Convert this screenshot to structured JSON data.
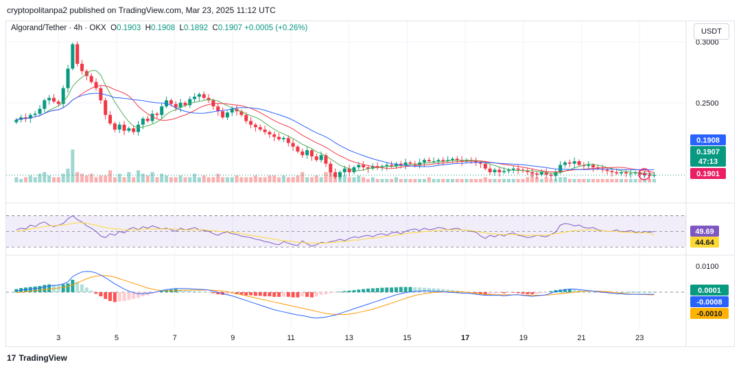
{
  "header": {
    "publisher": "cryptopolitanpa2 published on TradingView.com, Mar 23, 2025 11:12 UTC"
  },
  "legend": {
    "symbol": "Algorand/Tether · 4h · OKX",
    "open_label": "O",
    "open": "0.1903",
    "high_label": "H",
    "high": "0.1908",
    "low_label": "L",
    "low": "0.1892",
    "close_label": "C",
    "close": "0.1907",
    "change": "+0.0005 (+0.26%)"
  },
  "currency": "USDT",
  "footer": {
    "brand": "TradingView",
    "logo": "17"
  },
  "colors": {
    "up": "#089981",
    "down": "#f23645",
    "ma_green": "#4caf50",
    "ma_red": "#f23645",
    "ma_blue": "#2962ff",
    "rsi": "#7e57c2",
    "rsi_ma": "#fdd835",
    "macd": "#2962ff",
    "signal": "#ff9800"
  },
  "chart_data": [
    {
      "type": "candlestick",
      "pane": "price",
      "xlabel": "",
      "ylabel": "",
      "x_ticks": [
        "3",
        "5",
        "7",
        "9",
        "11",
        "13",
        "15",
        "17",
        "19",
        "21",
        "23"
      ],
      "x_tick_days": [
        3,
        5,
        7,
        9,
        11,
        13,
        15,
        17,
        19,
        21,
        23
      ],
      "bold_tick": "17",
      "x_range_days": [
        1.2,
        24.6
      ],
      "y_ticks": [
        "0.3000",
        "0.2500"
      ],
      "y_tick_values": [
        0.3,
        0.25
      ],
      "ylim": [
        0.1835,
        0.309
      ],
      "price_labels": [
        {
          "text": "0.1908",
          "value": 0.1908,
          "color": "#2962ff"
        },
        {
          "text": "0.1907",
          "value": 0.1907,
          "color": "#089981"
        },
        {
          "text": "47:13",
          "value": 0.1907,
          "color": "#089981",
          "note": "countdown"
        },
        {
          "text": "0.1901",
          "value": 0.1901,
          "color": "#e91e63"
        }
      ],
      "close_approx": [
        0.236,
        0.238,
        0.237,
        0.24,
        0.241,
        0.245,
        0.252,
        0.254,
        0.251,
        0.249,
        0.262,
        0.278,
        0.298,
        0.282,
        0.276,
        0.272,
        0.267,
        0.262,
        0.252,
        0.24,
        0.233,
        0.228,
        0.232,
        0.227,
        0.229,
        0.226,
        0.232,
        0.237,
        0.235,
        0.241,
        0.24,
        0.247,
        0.252,
        0.249,
        0.246,
        0.25,
        0.248,
        0.253,
        0.255,
        0.257,
        0.254,
        0.252,
        0.247,
        0.243,
        0.238,
        0.242,
        0.245,
        0.243,
        0.24,
        0.235,
        0.232,
        0.23,
        0.228,
        0.226,
        0.224,
        0.222,
        0.22,
        0.221,
        0.217,
        0.214,
        0.21,
        0.207,
        0.211,
        0.206,
        0.203,
        0.207,
        0.2,
        0.193,
        0.189,
        0.193,
        0.196,
        0.193,
        0.197,
        0.199,
        0.197,
        0.196,
        0.198,
        0.197,
        0.198,
        0.199,
        0.198,
        0.2,
        0.199,
        0.201,
        0.2,
        0.199,
        0.201,
        0.203,
        0.202,
        0.202,
        0.203,
        0.202,
        0.203,
        0.204,
        0.203,
        0.202,
        0.203,
        0.202,
        0.201,
        0.2,
        0.196,
        0.193,
        0.195,
        0.193,
        0.194,
        0.195,
        0.196,
        0.195,
        0.194,
        0.193,
        0.192,
        0.191,
        0.193,
        0.191,
        0.19,
        0.193,
        0.199,
        0.201,
        0.2,
        0.202,
        0.199,
        0.198,
        0.199,
        0.197,
        0.196,
        0.195,
        0.194,
        0.193,
        0.192,
        0.193,
        0.192,
        0.192,
        0.193,
        0.191,
        0.191,
        0.19,
        0.1907
      ],
      "volume_approx": [
        0.3,
        0.2,
        0.3,
        0.4,
        0.3,
        0.5,
        0.6,
        0.4,
        0.3,
        0.3,
        0.5,
        0.8,
        1.9,
        0.6,
        0.5,
        0.4,
        0.5,
        0.3,
        0.4,
        0.4,
        0.7,
        0.3,
        0.5,
        0.3,
        0.6,
        0.3,
        0.7,
        0.5,
        0.4,
        0.6,
        0.3,
        0.5,
        0.4,
        0.3,
        0.3,
        0.4,
        0.3,
        0.3,
        0.5,
        0.3,
        0.4,
        0.3,
        0.3,
        0.5,
        0.3,
        0.3,
        0.3,
        0.4,
        0.3,
        0.3,
        0.3,
        0.4,
        0.3,
        0.3,
        0.4,
        0.4,
        0.3,
        0.4,
        0.3,
        0.3,
        0.4,
        0.6,
        0.3,
        0.3,
        0.4,
        0.3,
        0.6,
        0.7,
        0.5,
        0.3,
        0.4,
        0.3,
        0.3,
        0.4,
        0.3,
        0.2,
        0.3,
        0.2,
        0.2,
        0.2,
        0.2,
        0.3,
        0.2,
        0.2,
        0.2,
        0.2,
        0.2,
        0.2,
        0.3,
        0.2,
        0.2,
        0.2,
        0.2,
        0.2,
        0.2,
        0.2,
        0.2,
        0.2,
        0.2,
        0.2,
        0.3,
        0.2,
        0.2,
        0.2,
        0.2,
        0.2,
        0.2,
        0.2,
        0.2,
        0.3,
        0.6,
        0.3,
        0.2,
        0.3,
        0.2,
        0.2,
        0.3,
        0.3,
        0.2,
        0.2,
        0.2,
        0.2,
        0.2,
        0.2,
        0.2,
        0.2,
        0.2,
        0.2,
        0.2,
        0.2,
        0.2,
        0.2,
        0.2,
        0.2,
        0.2,
        0.2,
        0.2
      ]
    },
    {
      "type": "line",
      "pane": "rsi",
      "ylim": [
        25,
        80
      ],
      "bands": [
        70,
        50,
        30
      ],
      "series": [
        {
          "key": "rsi",
          "value_label": "49.69",
          "last": 49.69,
          "values": [
            52,
            54,
            53,
            58,
            56,
            60,
            62,
            58,
            56,
            58,
            60,
            66,
            70,
            65,
            62,
            57,
            54,
            50,
            44,
            42,
            47,
            45,
            50,
            48,
            53,
            55,
            52,
            56,
            54,
            57,
            55,
            53,
            54,
            52,
            50,
            54,
            52,
            53,
            55,
            52,
            51,
            50,
            47,
            45,
            48,
            49,
            47,
            46,
            44,
            43,
            42,
            40,
            39,
            37,
            36,
            34,
            33,
            37,
            35,
            33,
            32,
            38,
            34,
            31,
            33,
            36,
            35,
            37,
            38,
            40,
            38,
            41,
            43,
            42,
            44,
            45,
            43,
            46,
            47,
            45,
            48,
            49,
            47,
            50,
            52,
            53,
            51,
            54,
            52,
            53,
            55,
            54,
            52,
            53,
            54,
            52,
            51,
            50,
            49,
            44,
            41,
            45,
            43,
            46,
            44,
            47,
            48,
            45,
            44,
            42,
            43,
            45,
            44,
            43,
            46,
            49,
            58,
            60,
            59,
            57,
            58,
            55,
            54,
            55,
            52,
            51,
            50,
            50,
            52,
            49,
            50,
            51,
            49,
            48,
            50,
            49,
            49.69
          ]
        },
        {
          "key": "rsi_ma",
          "value_label": "44.64",
          "last": 44.64,
          "values": [
            50,
            51,
            52,
            53,
            54,
            55,
            56,
            57,
            57,
            58,
            58,
            59,
            60,
            61,
            61,
            60,
            59,
            58,
            56,
            55,
            54,
            53,
            53,
            52,
            52,
            52,
            52,
            53,
            53,
            53,
            53,
            53,
            53,
            53,
            53,
            52,
            52,
            52,
            52,
            52,
            52,
            51,
            51,
            50,
            50,
            49,
            49,
            48,
            47,
            46,
            45,
            44,
            43,
            42,
            41,
            40,
            39,
            38,
            38,
            37,
            36,
            36,
            35,
            35,
            35,
            35,
            35,
            36,
            36,
            37,
            37,
            38,
            39,
            39,
            40,
            41,
            41,
            42,
            43,
            44,
            44,
            45,
            46,
            47,
            48,
            48,
            49,
            50,
            50,
            51,
            51,
            52,
            52,
            52,
            52,
            52,
            51,
            51,
            50,
            49,
            48,
            47,
            47,
            46,
            46,
            46,
            46,
            46,
            45,
            45,
            45,
            45,
            45,
            45,
            46,
            47,
            48,
            49,
            50,
            51,
            51,
            52,
            52,
            52,
            51,
            51,
            50,
            50,
            50,
            49,
            49,
            49,
            48,
            48,
            48,
            48,
            44.64
          ]
        }
      ]
    },
    {
      "type": "bar",
      "pane": "macd",
      "y_ticks": [
        "0.0100"
      ],
      "y_tick_values": [
        0.01
      ],
      "ylim": [
        -0.0132,
        0.0135
      ],
      "series": [
        {
          "key": "histogram",
          "value_label": "0.0001",
          "last": 0.0001
        },
        {
          "key": "macd",
          "value_label": "-0.0008",
          "last": -0.0008
        },
        {
          "key": "signal",
          "value_label": "-0.0010",
          "last": -0.001
        }
      ],
      "histogram_values": [
        0.0012,
        0.0016,
        0.0018,
        0.002,
        0.0022,
        0.0024,
        0.0028,
        0.003,
        0.0029,
        0.0028,
        0.003,
        0.0034,
        0.0048,
        0.004,
        0.003,
        0.0018,
        0.0006,
        -0.0006,
        -0.0016,
        -0.0026,
        -0.0034,
        -0.0038,
        -0.0036,
        -0.0034,
        -0.003,
        -0.0026,
        -0.0022,
        -0.0016,
        -0.0012,
        -0.0006,
        -0.0002,
        0.0004,
        0.0008,
        0.001,
        0.0012,
        0.001,
        0.0008,
        0.0006,
        0.0005,
        0.0004,
        0.0002,
        0.0,
        -0.0004,
        -0.0008,
        -0.001,
        -0.0008,
        -0.0006,
        -0.0008,
        -0.001,
        -0.0012,
        -0.0012,
        -0.0014,
        -0.0014,
        -0.0016,
        -0.0016,
        -0.0018,
        -0.0018,
        -0.0016,
        -0.0018,
        -0.002,
        -0.002,
        -0.0016,
        -0.0018,
        -0.002,
        -0.0016,
        -0.001,
        -0.0008,
        -0.0004,
        -0.0002,
        0.0002,
        0.0004,
        0.0006,
        0.0008,
        0.001,
        0.0012,
        0.0014,
        0.0015,
        0.0016,
        0.0017,
        0.0018,
        0.0018,
        0.0019,
        0.002,
        0.002,
        0.002,
        0.0019,
        0.0018,
        0.0017,
        0.0016,
        0.0015,
        0.0014,
        0.0012,
        0.001,
        0.0008,
        0.0006,
        0.0004,
        0.0002,
        0.0,
        -0.0004,
        -0.0008,
        -0.001,
        -0.0008,
        -0.0006,
        -0.0004,
        -0.0004,
        -0.0002,
        -0.0002,
        -0.0004,
        -0.0006,
        -0.0008,
        -0.0008,
        -0.0006,
        -0.0004,
        -0.0002,
        0.0004,
        0.0008,
        0.001,
        0.0012,
        0.0012,
        0.001,
        0.0008,
        0.0006,
        0.0004,
        0.0002,
        0.0,
        -0.0002,
        -0.0002,
        -0.0002,
        -0.0001,
        0.0,
        0.0,
        0.0001,
        0.0001,
        0.0001,
        0.0001,
        0.0001,
        0.0001
      ],
      "macd_values": [
        0.0005,
        0.0008,
        0.001,
        0.0012,
        0.0014,
        0.0016,
        0.002,
        0.0024,
        0.0026,
        0.0028,
        0.0032,
        0.004,
        0.006,
        0.007,
        0.0078,
        0.008,
        0.0079,
        0.0074,
        0.0066,
        0.0056,
        0.0044,
        0.0032,
        0.0022,
        0.0012,
        0.0004,
        -0.0002,
        -0.0006,
        -0.0006,
        -0.0004,
        -0.0002,
        0.0002,
        0.0006,
        0.001,
        0.0012,
        0.0014,
        0.0014,
        0.0014,
        0.0013,
        0.0012,
        0.0011,
        0.001,
        0.0008,
        0.0004,
        0.0,
        -0.0006,
        -0.001,
        -0.0014,
        -0.002,
        -0.0026,
        -0.0032,
        -0.0038,
        -0.0044,
        -0.005,
        -0.0056,
        -0.0062,
        -0.0068,
        -0.0072,
        -0.0076,
        -0.008,
        -0.0084,
        -0.0088,
        -0.009,
        -0.0094,
        -0.0098,
        -0.01,
        -0.0098,
        -0.0096,
        -0.0092,
        -0.0088,
        -0.0082,
        -0.0076,
        -0.007,
        -0.0064,
        -0.0058,
        -0.0052,
        -0.0046,
        -0.004,
        -0.0034,
        -0.0028,
        -0.0022,
        -0.0016,
        -0.001,
        -0.0006,
        -0.0002,
        0.0001,
        0.0003,
        0.0004,
        0.0005,
        0.0005,
        0.0004,
        0.0003,
        0.0002,
        0.0,
        -0.0001,
        -0.0002,
        -0.0003,
        -0.0004,
        -0.0005,
        -0.0008,
        -0.001,
        -0.0012,
        -0.0012,
        -0.0012,
        -0.0012,
        -0.0014,
        -0.0012,
        -0.001,
        -0.001,
        -0.0012,
        -0.0014,
        -0.0016,
        -0.0014,
        -0.0012,
        -0.001,
        -0.0004,
        0.0002,
        0.0006,
        0.001,
        0.0012,
        0.0012,
        0.001,
        0.0008,
        0.0006,
        0.0004,
        0.0002,
        0.0,
        -0.0002,
        -0.0004,
        -0.0006,
        -0.0006,
        -0.0008,
        -0.0008,
        -0.0008,
        -0.0008,
        -0.0008,
        -0.0008,
        -0.0008
      ],
      "signal_values": [
        -0.0002,
        0.0,
        0.0002,
        0.0004,
        0.0006,
        0.0008,
        0.001,
        0.0012,
        0.0014,
        0.0016,
        0.0019,
        0.0022,
        0.0028,
        0.0036,
        0.0044,
        0.0052,
        0.0058,
        0.0062,
        0.0064,
        0.0064,
        0.0062,
        0.0058,
        0.0052,
        0.0046,
        0.004,
        0.0034,
        0.0028,
        0.0022,
        0.0016,
        0.0012,
        0.0008,
        0.0006,
        0.0005,
        0.0005,
        0.0006,
        0.0007,
        0.0008,
        0.0008,
        0.0008,
        0.0008,
        0.0008,
        0.0008,
        0.0007,
        0.0006,
        0.0004,
        0.0002,
        -0.0002,
        -0.0006,
        -0.001,
        -0.0014,
        -0.0018,
        -0.0022,
        -0.0026,
        -0.003,
        -0.0034,
        -0.0038,
        -0.0042,
        -0.0046,
        -0.005,
        -0.0054,
        -0.0058,
        -0.0062,
        -0.0066,
        -0.007,
        -0.0074,
        -0.0078,
        -0.0082,
        -0.0084,
        -0.0086,
        -0.0086,
        -0.0086,
        -0.0084,
        -0.0082,
        -0.0078,
        -0.0074,
        -0.007,
        -0.0066,
        -0.006,
        -0.0054,
        -0.0048,
        -0.0042,
        -0.0036,
        -0.003,
        -0.0024,
        -0.0018,
        -0.0013,
        -0.0009,
        -0.0006,
        -0.0003,
        -0.0001,
        0.0,
        0.0001,
        0.0002,
        0.0002,
        0.0002,
        0.0001,
        0.0,
        -0.0002,
        -0.0004,
        -0.0006,
        -0.0008,
        -0.0009,
        -0.001,
        -0.001,
        -0.001,
        -0.001,
        -0.001,
        -0.001,
        -0.0011,
        -0.0012,
        -0.0012,
        -0.0012,
        -0.0012,
        -0.0011,
        -0.001,
        -0.0008,
        -0.0006,
        -0.0004,
        -0.0002,
        0.0,
        0.0002,
        0.0003,
        0.0004,
        0.0004,
        0.0004,
        0.0003,
        0.0002,
        0.0,
        -0.0002,
        -0.0004,
        -0.0006,
        -0.0007,
        -0.0008,
        -0.0009,
        -0.0009,
        -0.001,
        -0.001
      ]
    }
  ]
}
